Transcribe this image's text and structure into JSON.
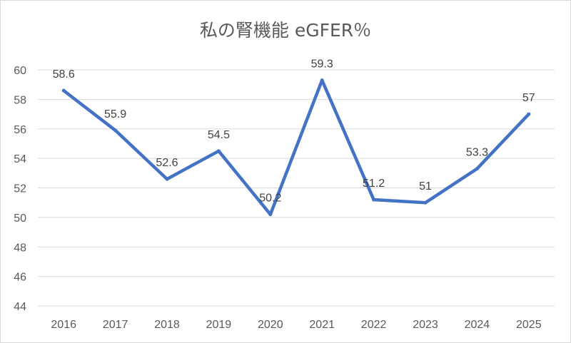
{
  "chart_data": {
    "type": "line",
    "title": "私の腎機能 eGFER％",
    "xlabel": "",
    "ylabel": "",
    "categories": [
      "2016",
      "2017",
      "2018",
      "2019",
      "2020",
      "2021",
      "2022",
      "2023",
      "2024",
      "2025"
    ],
    "series": [
      {
        "name": "eGFER",
        "values": [
          58.6,
          55.9,
          52.6,
          54.5,
          50.2,
          59.3,
          51.2,
          51,
          53.3,
          57
        ],
        "data_labels": [
          "58.6",
          "55.9",
          "52.6",
          "54.5",
          "50.2",
          "59.3",
          "51.2",
          "51",
          "53.3",
          "57"
        ]
      }
    ],
    "ylim": [
      44,
      60
    ],
    "yticks": [
      "44",
      "46",
      "48",
      "50",
      "52",
      "54",
      "56",
      "58",
      "60"
    ],
    "grid": true,
    "legend": "none",
    "line_color": "#4472c4",
    "grid_color": "#d9d9d9",
    "text_color": "#595959"
  }
}
